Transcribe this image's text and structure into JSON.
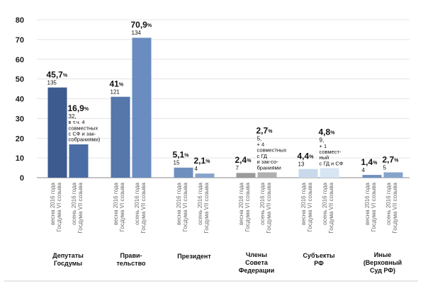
{
  "chart_data": {
    "type": "bar",
    "ylim": [
      0,
      80
    ],
    "yticks": [
      "0",
      "10",
      "20",
      "30",
      "40",
      "50",
      "60",
      "70",
      "80"
    ],
    "grid": true,
    "bar_colors": {
      "deputies": [
        "#3d5b8f",
        "#4b6da5"
      ],
      "government": [
        "#5577aa",
        "#6a8cc0"
      ],
      "president": [
        "#6f8fbf",
        "#87a3cc"
      ],
      "federation_council": [
        "#9a9a9a",
        "#b0b0b0"
      ],
      "subjects": [
        "#c9d9ec",
        "#d8e5f3"
      ],
      "other": [
        "#6f8fbf",
        "#87a3cc"
      ]
    },
    "groups": [
      {
        "key": "deputies",
        "label": [
          "Депутаты",
          "Госдумы"
        ],
        "bars": [
          {
            "x_label": [
              "весна 2016 года",
              "Госдума VI созыва"
            ],
            "value": 45.7,
            "pct_label": "45,7",
            "count_lines": [
              "135"
            ]
          },
          {
            "x_label": [
              "осень 2016 года",
              "Госдума VII созыва"
            ],
            "value": 16.9,
            "pct_label": "16,9",
            "count_lines": [
              "32,",
              "в т.ч. 4",
              "совместных",
              "с СФ и зак-",
              "собраниями)"
            ]
          }
        ]
      },
      {
        "key": "government",
        "label": [
          "Прави-",
          "тельство"
        ],
        "bars": [
          {
            "x_label": [
              "весна 2016 года",
              "Госдума VI созыва"
            ],
            "value": 41,
            "pct_label": "41",
            "count_lines": [
              "121"
            ]
          },
          {
            "x_label": [
              "осень 2016 года",
              "Госдума VII созыва"
            ],
            "value": 70.9,
            "pct_label": "70,9",
            "count_lines": [
              "134"
            ]
          }
        ]
      },
      {
        "key": "president",
        "label": [
          "Президент"
        ],
        "bars": [
          {
            "x_label": [
              "весна 2016 года",
              "Госдума VI созыва"
            ],
            "value": 5.1,
            "pct_label": "5,1",
            "count_lines": [
              "15"
            ]
          },
          {
            "x_label": [
              "осень 2016 года",
              "Госдума VII созыва"
            ],
            "value": 2.1,
            "pct_label": "2,1",
            "count_lines": [
              "4"
            ]
          }
        ]
      },
      {
        "key": "federation_council",
        "label": [
          "Члены",
          "Совета",
          "Федерации"
        ],
        "bars": [
          {
            "x_label": [
              "весна 2016 года",
              "Госдума VI созыва"
            ],
            "value": 2.4,
            "pct_label": "2,4",
            "count_lines": [
              "7"
            ]
          },
          {
            "x_label": [
              "осень 2016 года",
              "Госдума VII созыва"
            ],
            "value": 2.7,
            "pct_label": "2,7",
            "count_lines": [
              "5,",
              "+ 4",
              "совместных",
              "с ГД",
              "и зак-со-",
              "браниями"
            ]
          }
        ]
      },
      {
        "key": "subjects",
        "label": [
          "Субъекты",
          "РФ"
        ],
        "bars": [
          {
            "x_label": [
              "весна 2016 года",
              "Госдума VI созыва"
            ],
            "value": 4.4,
            "pct_label": "4,4",
            "count_lines": [
              "13"
            ]
          },
          {
            "x_label": [
              "осень 2016 года",
              "Госдума VII созыва"
            ],
            "value": 4.8,
            "pct_label": "4,8",
            "count_lines": [
              "9,",
              "+ 1",
              "совмест-",
              "ный",
              "с ГД и СФ"
            ]
          }
        ]
      },
      {
        "key": "other",
        "label": [
          "Иные",
          "(Верховный",
          "Суд РФ)"
        ],
        "bars": [
          {
            "x_label": [
              "весна 2016 года",
              "Госдума VI созыва"
            ],
            "value": 1.4,
            "pct_label": "1,4",
            "count_lines": [
              "4"
            ]
          },
          {
            "x_label": [
              "осень 2016 года",
              "Госдума VII созыва"
            ],
            "value": 2.7,
            "pct_label": "2,7",
            "count_lines": [
              "5"
            ]
          }
        ]
      }
    ],
    "pct_sign": "%"
  }
}
